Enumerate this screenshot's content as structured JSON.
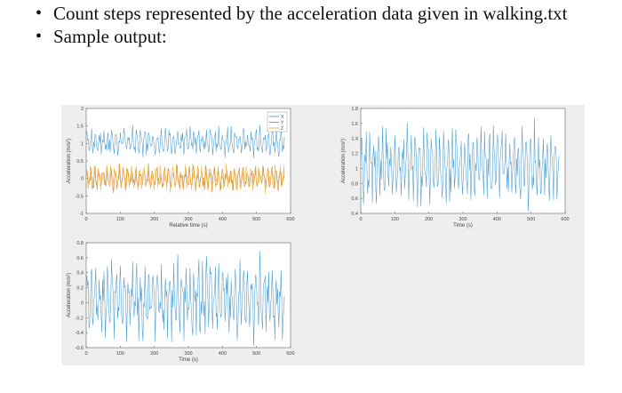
{
  "bullets": [
    "Count steps represented by the acceleration data given in walking.txt",
    "Sample output:"
  ],
  "chart_data": [
    {
      "type": "line",
      "xlabel": "Relative time (s)",
      "ylabel": "Acceleration (m/s²)",
      "xlim": [
        0,
        600
      ],
      "ylim": [
        -1,
        2
      ],
      "xticks": [
        0,
        100,
        200,
        300,
        400,
        500,
        600
      ],
      "yticks": [
        -1,
        -0.5,
        0,
        0.5,
        1,
        1.5,
        2
      ],
      "legend": {
        "position": "top-right",
        "entries": [
          "X",
          "Y",
          "Z"
        ]
      },
      "series": [
        {
          "name": "X",
          "color": "#4a9cd0",
          "mean": 1.05,
          "amplitude": 0.35
        },
        {
          "name": "Y",
          "color": "#e0772a",
          "mean": 0.0,
          "amplitude": 0.3
        },
        {
          "name": "Z",
          "color": "#e8b73a",
          "mean": 0.02,
          "amplitude": 0.32
        }
      ]
    },
    {
      "type": "line",
      "xlabel": "Time (s)",
      "ylabel": "Acceleration (m/s²)",
      "xlim": [
        0,
        600
      ],
      "ylim": [
        0.4,
        1.8
      ],
      "xticks": [
        0,
        100,
        200,
        300,
        400,
        500,
        600
      ],
      "yticks": [
        0.4,
        0.6,
        0.8,
        1,
        1.2,
        1.4,
        1.6,
        1.8
      ],
      "series": [
        {
          "color": "#4a9cd0",
          "mean": 1.05,
          "amplitude": 0.45
        }
      ]
    },
    {
      "type": "line",
      "xlabel": "Time (s)",
      "ylabel": "Acceleration (m/s²)",
      "xlim": [
        0,
        600
      ],
      "ylim": [
        -0.6,
        0.8
      ],
      "xticks": [
        0,
        100,
        200,
        300,
        400,
        500,
        600
      ],
      "yticks": [
        -0.6,
        -0.4,
        -0.2,
        0,
        0.2,
        0.4,
        0.6,
        0.8
      ],
      "series": [
        {
          "color": "#4a9cd0",
          "mean": 0.05,
          "amplitude": 0.45
        }
      ]
    }
  ]
}
